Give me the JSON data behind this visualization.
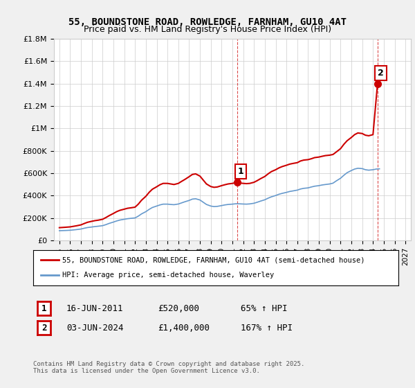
{
  "title": "55, BOUNDSTONE ROAD, ROWLEDGE, FARNHAM, GU10 4AT",
  "subtitle": "Price paid vs. HM Land Registry's House Price Index (HPI)",
  "ylabel": "",
  "xlabel": "",
  "ylim": [
    0,
    1800000
  ],
  "yticks": [
    0,
    200000,
    400000,
    600000,
    800000,
    1000000,
    1200000,
    1400000,
    1600000,
    1800000
  ],
  "ytick_labels": [
    "£0",
    "£200K",
    "£400K",
    "£600K",
    "£800K",
    "£1M",
    "£1.2M",
    "£1.4M",
    "£1.6M",
    "£1.8M"
  ],
  "xmin": 1994.5,
  "xmax": 2027.5,
  "bg_color": "#f0f0f0",
  "plot_bg": "#ffffff",
  "grid_color": "#cccccc",
  "red_color": "#cc0000",
  "blue_color": "#6699cc",
  "point1_x": 2011.46,
  "point1_y": 520000,
  "point2_x": 2024.42,
  "point2_y": 1400000,
  "annotation1_label": "1",
  "annotation2_label": "2",
  "legend_line1": "55, BOUNDSTONE ROAD, ROWLEDGE, FARNHAM, GU10 4AT (semi-detached house)",
  "legend_line2": "HPI: Average price, semi-detached house, Waverley",
  "table_row1": [
    "1",
    "16-JUN-2011",
    "£520,000",
    "65% ↑ HPI"
  ],
  "table_row2": [
    "2",
    "03-JUN-2024",
    "£1,400,000",
    "167% ↑ HPI"
  ],
  "footer": "Contains HM Land Registry data © Crown copyright and database right 2025.\nThis data is licensed under the Open Government Licence v3.0.",
  "red_x": [
    1995.0,
    1995.3,
    1995.6,
    1996.0,
    1996.3,
    1996.6,
    1997.0,
    1997.3,
    1997.6,
    1998.0,
    1998.3,
    1998.6,
    1999.0,
    1999.3,
    1999.6,
    2000.0,
    2000.3,
    2000.6,
    2001.0,
    2001.3,
    2001.6,
    2002.0,
    2002.3,
    2002.6,
    2003.0,
    2003.3,
    2003.6,
    2004.0,
    2004.3,
    2004.6,
    2005.0,
    2005.3,
    2005.6,
    2006.0,
    2006.3,
    2006.6,
    2007.0,
    2007.3,
    2007.6,
    2008.0,
    2008.3,
    2008.6,
    2009.0,
    2009.3,
    2009.6,
    2010.0,
    2010.3,
    2010.6,
    2011.0,
    2011.46,
    2011.6,
    2012.0,
    2012.3,
    2012.6,
    2013.0,
    2013.3,
    2013.6,
    2014.0,
    2014.3,
    2014.6,
    2015.0,
    2015.3,
    2015.6,
    2016.0,
    2016.3,
    2016.6,
    2017.0,
    2017.3,
    2017.6,
    2018.0,
    2018.3,
    2018.6,
    2019.0,
    2019.3,
    2019.6,
    2020.0,
    2020.3,
    2020.6,
    2021.0,
    2021.3,
    2021.6,
    2022.0,
    2022.3,
    2022.6,
    2023.0,
    2023.3,
    2023.6,
    2024.0,
    2024.42,
    2024.6
  ],
  "red_y": [
    115000,
    117000,
    119000,
    122000,
    127000,
    132000,
    140000,
    152000,
    163000,
    172000,
    178000,
    182000,
    190000,
    205000,
    222000,
    242000,
    258000,
    270000,
    280000,
    288000,
    292000,
    298000,
    325000,
    360000,
    395000,
    430000,
    458000,
    480000,
    498000,
    510000,
    510000,
    505000,
    500000,
    510000,
    528000,
    545000,
    570000,
    590000,
    595000,
    575000,
    540000,
    505000,
    482000,
    475000,
    478000,
    490000,
    498000,
    505000,
    510000,
    520000,
    515000,
    510000,
    508000,
    510000,
    520000,
    535000,
    552000,
    572000,
    595000,
    615000,
    632000,
    648000,
    660000,
    672000,
    682000,
    688000,
    695000,
    710000,
    718000,
    722000,
    730000,
    740000,
    745000,
    752000,
    758000,
    762000,
    768000,
    790000,
    820000,
    858000,
    890000,
    920000,
    945000,
    960000,
    955000,
    940000,
    935000,
    945000,
    1400000,
    1380000
  ],
  "blue_x": [
    1995.0,
    1995.3,
    1995.6,
    1996.0,
    1996.3,
    1996.6,
    1997.0,
    1997.3,
    1997.6,
    1998.0,
    1998.3,
    1998.6,
    1999.0,
    1999.3,
    1999.6,
    2000.0,
    2000.3,
    2000.6,
    2001.0,
    2001.3,
    2001.6,
    2002.0,
    2002.3,
    2002.6,
    2003.0,
    2003.3,
    2003.6,
    2004.0,
    2004.3,
    2004.6,
    2005.0,
    2005.3,
    2005.6,
    2006.0,
    2006.3,
    2006.6,
    2007.0,
    2007.3,
    2007.6,
    2008.0,
    2008.3,
    2008.6,
    2009.0,
    2009.3,
    2009.6,
    2010.0,
    2010.3,
    2010.6,
    2011.0,
    2011.3,
    2011.6,
    2012.0,
    2012.3,
    2012.6,
    2013.0,
    2013.3,
    2013.6,
    2014.0,
    2014.3,
    2014.6,
    2015.0,
    2015.3,
    2015.6,
    2016.0,
    2016.3,
    2016.6,
    2017.0,
    2017.3,
    2017.6,
    2018.0,
    2018.3,
    2018.6,
    2019.0,
    2019.3,
    2019.6,
    2020.0,
    2020.3,
    2020.6,
    2021.0,
    2021.3,
    2021.6,
    2022.0,
    2022.3,
    2022.6,
    2023.0,
    2023.3,
    2023.6,
    2024.0,
    2024.3,
    2024.6
  ],
  "blue_y": [
    88000,
    89000,
    90000,
    92000,
    95000,
    98000,
    103000,
    110000,
    116000,
    121000,
    125000,
    128000,
    133000,
    142000,
    153000,
    165000,
    175000,
    183000,
    190000,
    195000,
    198000,
    202000,
    218000,
    238000,
    258000,
    278000,
    295000,
    308000,
    318000,
    325000,
    325000,
    322000,
    320000,
    326000,
    336000,
    346000,
    358000,
    370000,
    373000,
    362000,
    342000,
    322000,
    308000,
    303000,
    305000,
    312000,
    318000,
    322000,
    325000,
    328000,
    328000,
    326000,
    325000,
    327000,
    333000,
    342000,
    352000,
    364000,
    378000,
    390000,
    402000,
    413000,
    421000,
    430000,
    438000,
    443000,
    450000,
    460000,
    466000,
    470000,
    478000,
    485000,
    490000,
    496000,
    500000,
    505000,
    512000,
    532000,
    556000,
    582000,
    605000,
    625000,
    638000,
    645000,
    642000,
    632000,
    628000,
    632000,
    638000,
    640000
  ]
}
